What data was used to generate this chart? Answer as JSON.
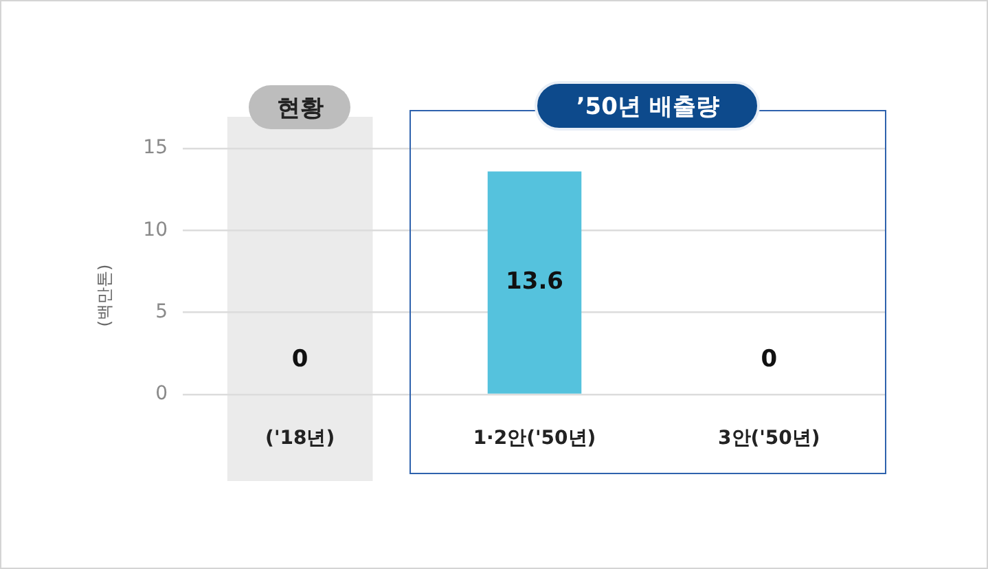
{
  "chart_data": {
    "type": "bar",
    "ylabel": "(백만톤)",
    "categories": [
      "('18년)",
      "1·2안('50년)",
      "3안('50년)"
    ],
    "values": [
      0,
      13.6,
      0
    ],
    "color": "#55c2dd",
    "ylim": [
      0,
      15
    ],
    "yticks": [
      0,
      5,
      10,
      15
    ],
    "grid": "y",
    "data_labels": true,
    "bands": [
      {
        "axis": "x",
        "from": "('18년)",
        "to": "('18년)",
        "label": "현황",
        "color": "#ebebeb"
      }
    ],
    "annotations": [
      "’50년 배출량"
    ]
  }
}
